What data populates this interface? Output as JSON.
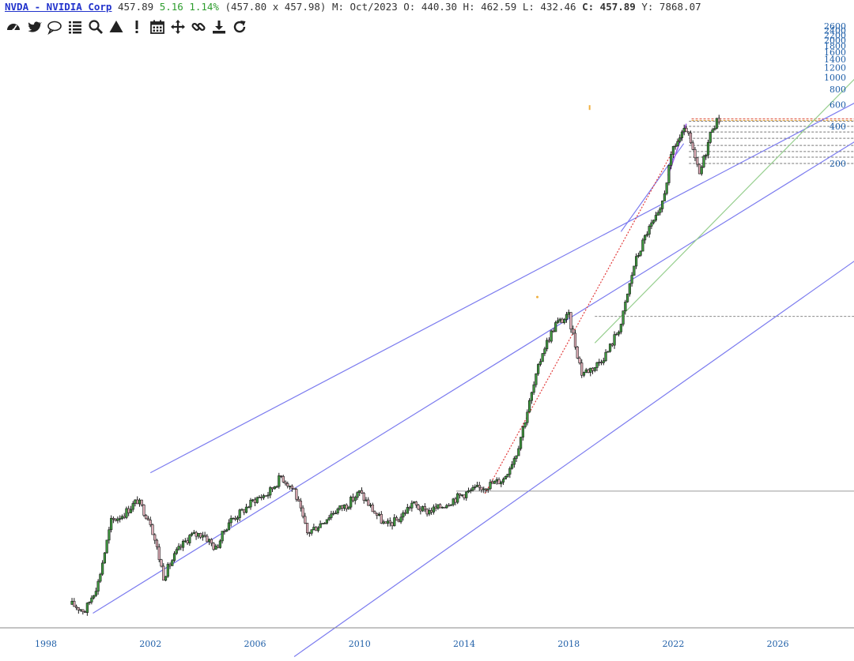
{
  "header": {
    "symbol": "NVDA - NVIDIA Corp",
    "price": "457.89",
    "change": "5.16 1.14%",
    "bidask": "(457.80 x 457.98)",
    "period": "M: Oct/2023",
    "open": "O: 440.30",
    "high": "H: 462.59",
    "low": "L: 432.46",
    "close_label": "C:",
    "close_value": "457.89",
    "ytd": "Y: 7868.07"
  },
  "toolbar": {
    "icons": [
      "dashboard-icon",
      "twitter-icon",
      "comment-icon",
      "list-icon",
      "search-icon",
      "triangle-icon",
      "exclamation-icon",
      "calendar-icon",
      "move-icon",
      "link-icon",
      "download-icon",
      "refresh-icon"
    ]
  },
  "colors": {
    "up_candle": "#3f9a3f",
    "down_candle": "#e0aeb8",
    "channel": "#7b7bef",
    "green_trend": "#97cf8f",
    "red_trend": "#e23c3c",
    "purple_line": "#a060e8",
    "axis_text": "#1f5fa8"
  },
  "chart_data": {
    "type": "candlestick",
    "scale": "log",
    "y_ticks": [
      "2600",
      "2400",
      "2200",
      "2000",
      "1800",
      "1600",
      "1400",
      "1200",
      "1000",
      "800",
      "600",
      "400",
      "200"
    ],
    "x_ticks": [
      "1998",
      "2002",
      "2006",
      "2010",
      "2014",
      "2018",
      "2022",
      "2026"
    ],
    "series": [
      {
        "x": [
          1999.0,
          1999.5,
          2000.0,
          2000.5,
          2001.0,
          2001.5,
          2002.0,
          2002.5,
          2003.0,
          2003.5,
          2004.0,
          2004.5,
          2005.0,
          2005.5,
          2006.0,
          2006.5,
          2007.0,
          2007.5,
          2008.0,
          2008.5,
          2009.0,
          2009.5,
          2010.0,
          2010.5,
          2011.0,
          2011.5,
          2012.0,
          2012.5,
          2013.0,
          2013.5,
          2014.0,
          2014.5,
          2015.0,
          2015.5,
          2016.0,
          2016.5,
          2017.0,
          2017.5,
          2018.0,
          2018.5,
          2019.0,
          2019.5,
          2020.0,
          2020.5,
          2021.0,
          2021.5,
          2022.0,
          2022.5,
          2023.0,
          2023.5,
          2023.75
        ],
        "y": [
          0.053,
          0.047,
          0.08,
          0.25,
          0.29,
          0.37,
          0.25,
          0.09,
          0.14,
          0.19,
          0.2,
          0.15,
          0.25,
          0.3,
          0.38,
          0.42,
          0.58,
          0.45,
          0.2,
          0.24,
          0.3,
          0.34,
          0.43,
          0.31,
          0.23,
          0.26,
          0.35,
          0.3,
          0.32,
          0.37,
          0.42,
          0.46,
          0.5,
          0.55,
          0.9,
          2.3,
          6.0,
          10.0,
          11.5,
          4.0,
          4.5,
          6.0,
          10.0,
          30.0,
          56.0,
          80.0,
          270.0,
          380.0,
          160.0,
          400.0,
          457.89
        ]
      }
    ]
  }
}
